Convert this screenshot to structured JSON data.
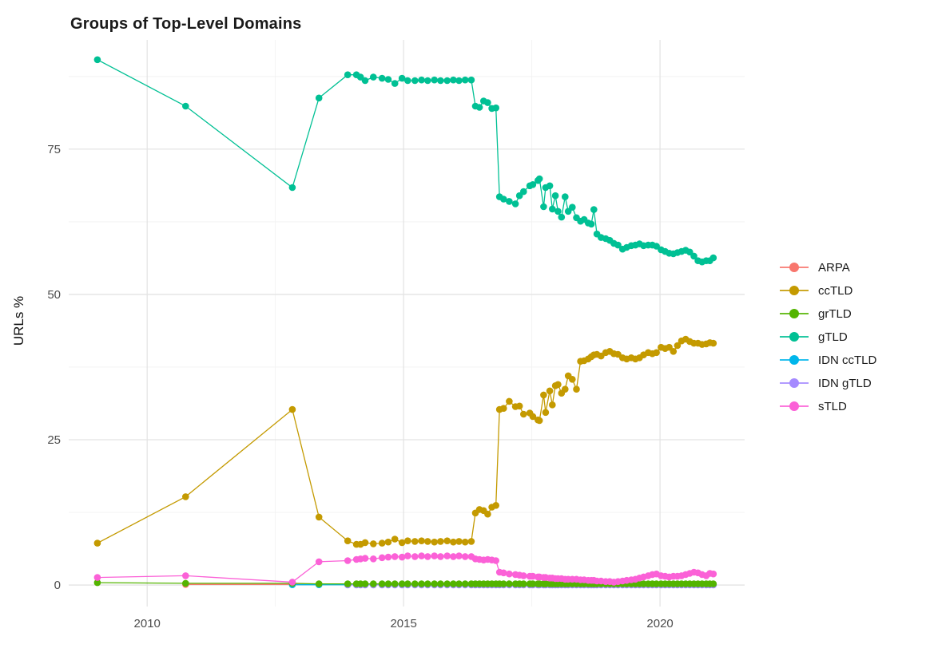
{
  "title": "Groups of Top-Level Domains",
  "axes": {
    "y_label": "URLs %",
    "y_ticks": [
      {
        "value": 0,
        "label": "0"
      },
      {
        "value": 25,
        "label": "25"
      },
      {
        "value": 50,
        "label": "50"
      },
      {
        "value": 75,
        "label": "75"
      }
    ],
    "x_ticks": [
      {
        "value": 2010,
        "label": "2010"
      },
      {
        "value": 2015,
        "label": "2015"
      },
      {
        "value": 2020,
        "label": "2020"
      }
    ],
    "y_minor": [
      12.5,
      37.5,
      62.5,
      87.5
    ],
    "x_minor": [
      2012.5,
      2017.5
    ]
  },
  "chart_data": {
    "type": "line",
    "title": "Groups of Top-Level Domains",
    "xlabel": "",
    "ylabel": "URLs %",
    "xlim": [
      2008.47,
      2021.65
    ],
    "ylim": [
      -3.7,
      93.8
    ],
    "grid": true,
    "legend_position": "right",
    "x": [
      2009.03,
      2010.75,
      2012.83,
      2013.35,
      2013.91,
      2014.08,
      2014.16,
      2014.25,
      2014.41,
      2014.58,
      2014.7,
      2014.83,
      2014.97,
      2015.08,
      2015.22,
      2015.35,
      2015.47,
      2015.6,
      2015.72,
      2015.85,
      2015.97,
      2016.08,
      2016.2,
      2016.32,
      2016.4,
      2016.48,
      2016.56,
      2016.64,
      2016.72,
      2016.8,
      2016.87,
      2016.95,
      2017.06,
      2017.18,
      2017.26,
      2017.34,
      2017.46,
      2017.52,
      2017.62,
      2017.65,
      2017.73,
      2017.77,
      2017.85,
      2017.9,
      2017.96,
      2018.01,
      2018.08,
      2018.15,
      2018.21,
      2018.29,
      2018.37,
      2018.45,
      2018.52,
      2018.6,
      2018.66,
      2018.71,
      2018.77,
      2018.85,
      2018.94,
      2019.02,
      2019.1,
      2019.18,
      2019.27,
      2019.35,
      2019.44,
      2019.52,
      2019.6,
      2019.68,
      2019.77,
      2019.85,
      2019.93,
      2020.02,
      2020.1,
      2020.18,
      2020.26,
      2020.34,
      2020.42,
      2020.5,
      2020.58,
      2020.66,
      2020.74,
      2020.82,
      2020.9,
      2020.97,
      2021.04
    ],
    "series": [
      {
        "name": "ARPA",
        "color": "#F8766D",
        "values": [
          null,
          0.1,
          0.1,
          0.1,
          0.1,
          0.1,
          0.1,
          0.1,
          0.1,
          0.1,
          0.1,
          0.1,
          0.1,
          0.1,
          0.1,
          0.1,
          0.1,
          0.1,
          0.1,
          0.1,
          0.1,
          0.1,
          0.1,
          0.1,
          0.1,
          0.1,
          0.1,
          0.1,
          0.1,
          0.1,
          0.1,
          0.1,
          0.1,
          0.1,
          0.1,
          0.1,
          0.1,
          0.1,
          0.1,
          0.1,
          0.1,
          0.1,
          0.1,
          0.1,
          0.1,
          0.1,
          0.1,
          0.1,
          0.1,
          0.1,
          0.1,
          0.1,
          0.1,
          0.1,
          0.1,
          0.1,
          0.1,
          0.1,
          0.1,
          0.1,
          0.1,
          0.1,
          0.1,
          0.1,
          0.1,
          0.1,
          0.1,
          0.1,
          0.1,
          0.1,
          0.1,
          0.1,
          0.1,
          0.1,
          0.1,
          0.1,
          0.1,
          0.1,
          0.1,
          0.1,
          0.1,
          0.1,
          0.1,
          0.1,
          0.1
        ]
      },
      {
        "name": "ccTLD",
        "color": "#C49A00",
        "values": [
          7.2,
          15.2,
          30.2,
          11.7,
          7.6,
          7.0,
          7.0,
          7.3,
          7.1,
          7.2,
          7.4,
          7.9,
          7.3,
          7.6,
          7.5,
          7.6,
          7.5,
          7.4,
          7.5,
          7.6,
          7.4,
          7.5,
          7.4,
          7.5,
          12.4,
          13.0,
          12.8,
          12.2,
          13.4,
          13.7,
          30.2,
          30.4,
          31.6,
          30.7,
          30.8,
          29.4,
          29.6,
          29.0,
          28.4,
          28.3,
          32.7,
          29.7,
          33.4,
          31.0,
          34.3,
          34.5,
          33.0,
          33.7,
          36.0,
          35.4,
          33.7,
          38.5,
          38.6,
          38.9,
          39.3,
          39.6,
          39.7,
          39.4,
          40.0,
          40.2,
          39.8,
          39.7,
          39.1,
          38.9,
          39.1,
          38.9,
          39.1,
          39.6,
          40.0,
          39.8,
          40.0,
          40.9,
          40.7,
          40.9,
          40.2,
          41.2,
          42.0,
          42.3,
          41.9,
          41.6,
          41.6,
          41.4,
          41.5,
          41.7,
          41.6
        ]
      },
      {
        "name": "grTLD",
        "color": "#53B400",
        "values": [
          0.4,
          0.3,
          0.3,
          0.2,
          0.2,
          0.2,
          0.2,
          0.2,
          0.2,
          0.2,
          0.2,
          0.2,
          0.2,
          0.2,
          0.2,
          0.2,
          0.2,
          0.2,
          0.2,
          0.2,
          0.2,
          0.2,
          0.2,
          0.2,
          0.2,
          0.2,
          0.2,
          0.2,
          0.2,
          0.2,
          0.2,
          0.2,
          0.2,
          0.2,
          0.2,
          0.2,
          0.2,
          0.2,
          0.2,
          0.2,
          0.2,
          0.2,
          0.2,
          0.2,
          0.2,
          0.2,
          0.2,
          0.2,
          0.2,
          0.2,
          0.2,
          0.2,
          0.2,
          0.2,
          0.2,
          0.2,
          0.2,
          0.2,
          0.2,
          0.2,
          0.2,
          0.2,
          0.2,
          0.2,
          0.2,
          0.2,
          0.2,
          0.2,
          0.2,
          0.2,
          0.2,
          0.2,
          0.2,
          0.2,
          0.2,
          0.2,
          0.2,
          0.2,
          0.2,
          0.2,
          0.2,
          0.2,
          0.2,
          0.2,
          0.2
        ]
      },
      {
        "name": "gTLD",
        "color": "#00C094",
        "values": [
          90.4,
          82.4,
          68.4,
          83.8,
          87.8,
          87.8,
          87.4,
          86.8,
          87.4,
          87.2,
          87.0,
          86.3,
          87.2,
          86.8,
          86.8,
          86.9,
          86.8,
          86.9,
          86.8,
          86.8,
          86.9,
          86.8,
          86.9,
          86.9,
          82.4,
          82.2,
          83.3,
          83.0,
          82.0,
          82.1,
          66.8,
          66.4,
          66.0,
          65.6,
          67.0,
          67.7,
          68.7,
          68.9,
          69.6,
          69.9,
          65.1,
          68.4,
          68.7,
          64.7,
          67.0,
          64.3,
          63.3,
          66.8,
          64.3,
          65.0,
          63.2,
          62.6,
          62.9,
          62.3,
          62.1,
          64.6,
          60.4,
          59.8,
          59.6,
          59.3,
          58.8,
          58.5,
          57.8,
          58.1,
          58.4,
          58.5,
          58.7,
          58.4,
          58.5,
          58.5,
          58.3,
          57.7,
          57.4,
          57.1,
          57.0,
          57.2,
          57.4,
          57.6,
          57.3,
          56.6,
          55.8,
          55.6,
          55.8,
          55.8,
          56.3
        ]
      },
      {
        "name": "IDN ccTLD",
        "color": "#00B6EB",
        "values": [
          null,
          null,
          0.05,
          0.05,
          0.05,
          0.05,
          0.05,
          0.05,
          0.05,
          0.05,
          0.05,
          0.05,
          0.05,
          0.05,
          0.05,
          0.05,
          0.05,
          0.05,
          0.05,
          0.05,
          0.05,
          0.05,
          0.05,
          0.05,
          0.05,
          0.05,
          0.05,
          0.05,
          0.05,
          0.05,
          0.05,
          0.05,
          0.05,
          0.05,
          0.05,
          0.05,
          0.05,
          0.05,
          0.05,
          0.05,
          0.05,
          0.05,
          0.05,
          0.05,
          0.05,
          0.05,
          0.05,
          0.05,
          0.05,
          0.05,
          0.05,
          0.05,
          0.05,
          0.05,
          0.05,
          0.05,
          0.05,
          0.05,
          0.05,
          0.05,
          0.05,
          0.05,
          0.05,
          0.05,
          0.05,
          0.05,
          0.05,
          0.05,
          0.05,
          0.05,
          0.05,
          0.05,
          0.05,
          0.05,
          0.05,
          0.05,
          0.05,
          0.05,
          0.05,
          0.05,
          0.05,
          0.05,
          0.05,
          0.05,
          0.05
        ]
      },
      {
        "name": "IDN gTLD",
        "color": "#A58AFF",
        "values": [
          null,
          null,
          null,
          null,
          0.02,
          0.02,
          0.02,
          0.02,
          0.02,
          0.02,
          0.02,
          0.02,
          0.02,
          0.02,
          0.02,
          0.02,
          0.02,
          0.02,
          0.02,
          0.02,
          0.02,
          0.02,
          0.02,
          0.02,
          0.02,
          0.02,
          0.02,
          0.02,
          0.02,
          0.02,
          0.02,
          0.02,
          0.02,
          0.02,
          0.02,
          0.02,
          0.02,
          0.02,
          0.02,
          0.02,
          0.02,
          0.02,
          0.02,
          0.02,
          0.02,
          0.02,
          0.02,
          0.02,
          0.02,
          0.02,
          0.02,
          0.02,
          0.02,
          0.02,
          0.02,
          0.02,
          0.02,
          0.02,
          0.02,
          0.02,
          0.02,
          0.02,
          0.02,
          0.02,
          0.02,
          0.02,
          0.02,
          0.02,
          0.02,
          0.02,
          0.02,
          0.02,
          0.02,
          0.02,
          0.02,
          0.02,
          0.02,
          0.02,
          0.02,
          0.02,
          0.02,
          0.02,
          0.02,
          0.02,
          0.02
        ]
      },
      {
        "name": "sTLD",
        "color": "#FB61D7",
        "values": [
          1.3,
          1.6,
          0.5,
          4.0,
          4.2,
          4.4,
          4.5,
          4.6,
          4.5,
          4.7,
          4.8,
          4.9,
          4.8,
          5.0,
          4.9,
          5.0,
          4.9,
          5.0,
          4.9,
          5.0,
          4.9,
          5.0,
          4.9,
          4.9,
          4.5,
          4.4,
          4.3,
          4.4,
          4.3,
          4.2,
          2.2,
          2.1,
          1.9,
          1.8,
          1.7,
          1.6,
          1.5,
          1.5,
          1.4,
          1.4,
          1.3,
          1.3,
          1.2,
          1.2,
          1.1,
          1.1,
          1.1,
          1.0,
          1.0,
          1.0,
          1.0,
          0.9,
          0.9,
          0.8,
          0.8,
          0.8,
          0.7,
          0.7,
          0.6,
          0.6,
          0.5,
          0.6,
          0.7,
          0.8,
          0.9,
          1.0,
          1.2,
          1.4,
          1.6,
          1.8,
          1.9,
          1.6,
          1.5,
          1.4,
          1.5,
          1.5,
          1.6,
          1.8,
          2.0,
          2.2,
          2.1,
          1.8,
          1.6,
          2.0,
          1.9
        ]
      }
    ]
  }
}
